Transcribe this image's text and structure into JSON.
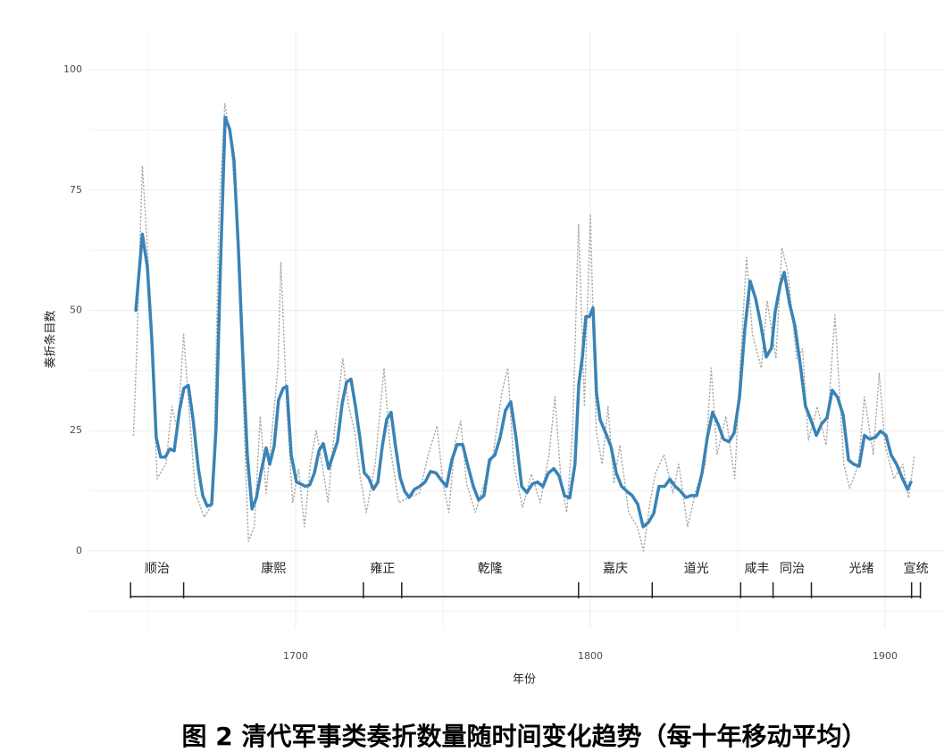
{
  "chart_data": {
    "type": "line",
    "caption": "图 2 清代军事类奏折数量随时间变化趋势（每十年移动平均）",
    "xlabel": "年份",
    "ylabel": "奏折条目数",
    "xlim": [
      1630,
      1920
    ],
    "xticks": [
      1700,
      1800,
      1900
    ],
    "xminor": [
      1650,
      1750,
      1850
    ],
    "ylim": [
      -16,
      108
    ],
    "yticks": [
      0,
      25,
      50,
      75,
      100
    ],
    "yminor": [
      -12.5,
      12.5,
      37.5,
      62.5,
      87.5
    ],
    "grid": true,
    "series": [
      {
        "color": "#aaaaaa",
        "style": "dotted",
        "x": [
          1645,
          1646,
          1648,
          1650,
          1652,
          1653,
          1656,
          1658,
          1660,
          1662,
          1664,
          1666,
          1669,
          1672,
          1674,
          1676,
          1678,
          1680,
          1682,
          1684,
          1686,
          1688,
          1690,
          1692,
          1694,
          1695,
          1697,
          1699,
          1701,
          1703,
          1705,
          1707,
          1709,
          1711,
          1713,
          1716,
          1718,
          1720,
          1722,
          1724,
          1727,
          1730,
          1732,
          1735,
          1738,
          1742,
          1745,
          1748,
          1750,
          1752,
          1754,
          1756,
          1758,
          1761,
          1764,
          1767,
          1770,
          1772,
          1774,
          1777,
          1780,
          1783,
          1786,
          1788,
          1790,
          1792,
          1794,
          1796,
          1798,
          1800,
          1802,
          1804,
          1806,
          1808,
          1810,
          1813,
          1816,
          1818,
          1820,
          1822,
          1825,
          1828,
          1830,
          1833,
          1836,
          1839,
          1841,
          1843,
          1846,
          1849,
          1851,
          1853,
          1855,
          1858,
          1860,
          1863,
          1865,
          1867,
          1870,
          1872,
          1874,
          1877,
          1880,
          1883,
          1886,
          1888,
          1891,
          1893,
          1896,
          1898,
          1900,
          1903,
          1906,
          1908,
          1910
        ],
        "values": [
          24,
          40,
          80,
          60,
          30,
          15,
          18,
          30,
          25,
          45,
          28,
          12,
          7,
          10,
          70,
          93,
          85,
          70,
          35,
          2,
          5,
          28,
          12,
          25,
          38,
          60,
          30,
          10,
          17,
          5,
          18,
          25,
          18,
          10,
          24,
          40,
          30,
          25,
          15,
          8,
          18,
          38,
          22,
          10,
          11,
          12,
          20,
          26,
          14,
          8,
          22,
          27,
          14,
          8,
          14,
          20,
          33,
          38,
          18,
          9,
          16,
          10,
          20,
          32,
          15,
          8,
          25,
          68,
          30,
          70,
          25,
          18,
          30,
          14,
          22,
          8,
          5,
          0,
          9,
          16,
          20,
          12,
          18,
          5,
          13,
          18,
          38,
          20,
          28,
          15,
          40,
          61,
          45,
          38,
          52,
          40,
          63,
          58,
          40,
          42,
          23,
          30,
          22,
          49,
          18,
          13,
          18,
          32,
          20,
          37,
          22,
          15,
          18,
          11,
          20
        ]
      },
      {
        "color": "#3a83b6",
        "style": "solid",
        "x": [
          1645.8,
          1648,
          1649.7,
          1651.2,
          1652.7,
          1654.2,
          1655.8,
          1657.3,
          1658.8,
          1660.6,
          1662.1,
          1663.6,
          1665.2,
          1667,
          1668.5,
          1670,
          1671.5,
          1673,
          1674.5,
          1676.1,
          1677.6,
          1679.1,
          1680.6,
          1682.1,
          1683.6,
          1685.2,
          1686.7,
          1688.2,
          1690,
          1691.2,
          1692.7,
          1694.2,
          1695.8,
          1697,
          1698.5,
          1700.3,
          1701.8,
          1703.3,
          1704.8,
          1706.4,
          1707.9,
          1709.4,
          1711.2,
          1712.7,
          1714.2,
          1715.8,
          1717.3,
          1718.8,
          1720.3,
          1721.8,
          1723.3,
          1724.8,
          1726.4,
          1727.9,
          1729.4,
          1730.9,
          1732.4,
          1733.9,
          1735.5,
          1737,
          1738.5,
          1740.3,
          1742.1,
          1743.9,
          1745.8,
          1747.6,
          1749.4,
          1751.2,
          1753,
          1754.8,
          1756.7,
          1758.5,
          1760.3,
          1762.1,
          1763.9,
          1765.8,
          1767.6,
          1769.4,
          1771.2,
          1773,
          1774.8,
          1776.7,
          1778.5,
          1780.3,
          1782.1,
          1783.9,
          1785.8,
          1787.6,
          1789.4,
          1791.2,
          1793,
          1794.8,
          1796.1,
          1797.3,
          1798.5,
          1799.7,
          1800.9,
          1802.1,
          1803.3,
          1805.2,
          1807,
          1808.8,
          1810.6,
          1812.4,
          1814.2,
          1816.1,
          1817.9,
          1819.7,
          1821.5,
          1823.3,
          1825.2,
          1827,
          1828.8,
          1830.6,
          1832.4,
          1834.2,
          1836.1,
          1837.9,
          1839.7,
          1841.5,
          1843.3,
          1845.2,
          1847,
          1848.8,
          1850.6,
          1852.4,
          1854.2,
          1856.1,
          1857.9,
          1859.7,
          1861.5,
          1862.7,
          1864.5,
          1865.8,
          1867.6,
          1869.4,
          1871.2,
          1873,
          1874.8,
          1876.7,
          1878.5,
          1880.3,
          1882.1,
          1883.9,
          1885.8,
          1887.6,
          1889.4,
          1891.2,
          1893,
          1894.8,
          1896.7,
          1898.5,
          1900.3,
          1902.1,
          1903.9,
          1905.8,
          1907.6,
          1908.8
        ],
        "values": [
          50,
          65.8,
          59,
          44,
          23.6,
          19.5,
          19.5,
          21.2,
          20.8,
          29.2,
          33.8,
          34.4,
          27.3,
          17.1,
          11.5,
          9.3,
          9.7,
          25.4,
          58.9,
          90.1,
          87.7,
          81.2,
          62.6,
          40.3,
          19.9,
          8.7,
          11,
          16.2,
          21.4,
          18,
          21.7,
          31.4,
          33.8,
          34.2,
          19.9,
          14.3,
          13.9,
          13.4,
          13.7,
          16.2,
          20.8,
          22.3,
          17.1,
          19.9,
          22.7,
          30.6,
          35.1,
          35.7,
          30.1,
          23.6,
          16.2,
          15.2,
          12.8,
          14.3,
          21.7,
          27.3,
          28.8,
          21.7,
          15.2,
          12.4,
          11.1,
          12.8,
          13.4,
          14.3,
          16.5,
          16.2,
          14.7,
          13.4,
          18.9,
          22.1,
          22.1,
          17.6,
          13.4,
          10.6,
          11.5,
          18.9,
          19.9,
          23.6,
          29.2,
          31,
          23.6,
          13.4,
          12.1,
          13.9,
          14.3,
          13.4,
          16.2,
          17.1,
          15.6,
          11.5,
          11,
          18,
          34.7,
          40.3,
          48.7,
          48.7,
          50.5,
          32.9,
          27.3,
          24.5,
          21.7,
          16.2,
          13.4,
          12.4,
          11.5,
          9.7,
          5,
          5.9,
          7.8,
          13.4,
          13.4,
          14.9,
          13.4,
          12.4,
          11.1,
          11.5,
          11.5,
          16.2,
          23.6,
          28.8,
          26.4,
          23.2,
          22.7,
          24.5,
          31.9,
          45.9,
          56.1,
          52.4,
          46.8,
          40.3,
          42.2,
          49.6,
          55.5,
          57.9,
          51.4,
          46.8,
          38.8,
          30.1,
          27.3,
          24,
          26.4,
          27.7,
          33.4,
          31.9,
          28.2,
          18.9,
          18,
          17.6,
          24,
          23.2,
          23.6,
          24.9,
          24,
          19.9,
          18,
          15.2,
          12.8,
          14.3
        ]
      }
    ],
    "periods": [
      {
        "name": "顺治",
        "start": 1644,
        "end": 1662
      },
      {
        "name": "康熙",
        "start": 1662,
        "end": 1723
      },
      {
        "name": "雍正",
        "start": 1723,
        "end": 1736
      },
      {
        "name": "乾隆",
        "start": 1736,
        "end": 1796
      },
      {
        "name": "嘉庆",
        "start": 1796,
        "end": 1821
      },
      {
        "name": "道光",
        "start": 1821,
        "end": 1851
      },
      {
        "name": "咸丰",
        "start": 1851,
        "end": 1862
      },
      {
        "name": "同治",
        "start": 1862,
        "end": 1875
      },
      {
        "name": "光绪",
        "start": 1875,
        "end": 1909
      },
      {
        "name": "宣统",
        "start": 1909,
        "end": 1912
      }
    ]
  }
}
